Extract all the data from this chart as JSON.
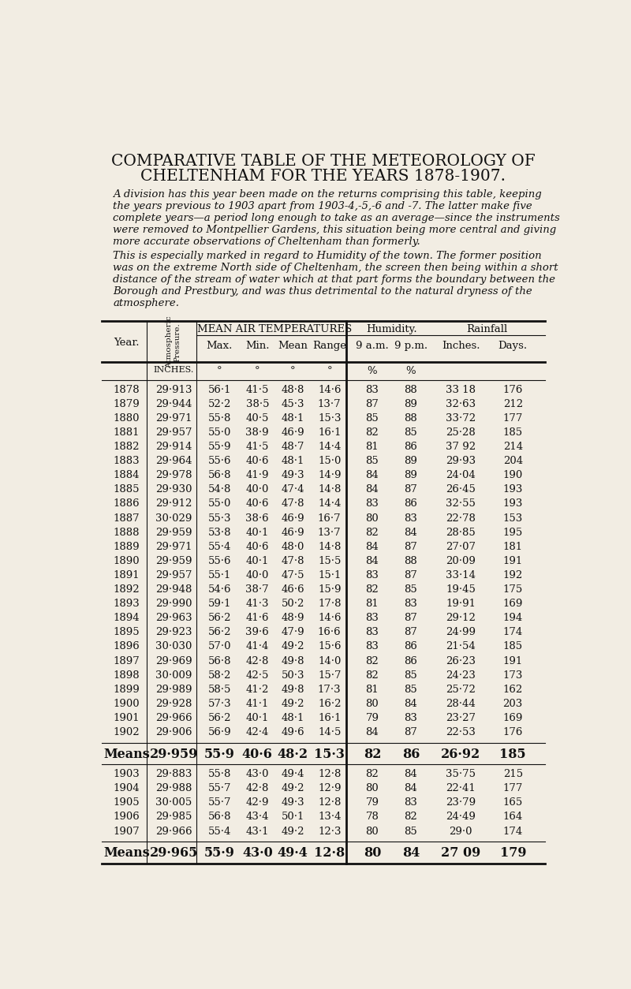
{
  "title_line1": "COMPARATIVE TABLE OF THE METEOROLOGY OF",
  "title_line2": "CHELTENHAM FOR THE YEARS 1878-1907.",
  "para1": "A division has this year been made on the returns comprising this table, keeping the years previous to 1903 apart from 1903-4,-5,-6 and -7. The latter make five complete years—a period long enough to take as an average—since the instruments were removed to Montpellier Gardens, this situation being more central and giving more accurate observations of Cheltenham than formerly.",
  "para2": "    This is especially marked in regard to Humidity of the town.  The former position was on the extreme North side of Cheltenham, the screen then being within a short distance of the stream of water which at that part forms the boundary between the Borough and Prestbury, and was thus detrimental to the natural dryness of the atmosphere.",
  "data_1878_1902": [
    [
      "1878",
      "29·913",
      "56·1",
      "41·5",
      "48·8",
      "14·6",
      "83",
      "88",
      "33 18",
      "176"
    ],
    [
      "1879",
      "29·944",
      "52·2",
      "38·5",
      "45·3",
      "13·7",
      "87",
      "89",
      "32·63",
      "212"
    ],
    [
      "1880",
      "29·971",
      "55·8",
      "40·5",
      "48·1",
      "15·3",
      "85",
      "88",
      "33·72",
      "177"
    ],
    [
      "1881",
      "29·957",
      "55·0",
      "38·9",
      "46·9",
      "16·1",
      "82",
      "85",
      "25·28",
      "185"
    ],
    [
      "1882",
      "29·914",
      "55·9",
      "41·5",
      "48·7",
      "14·4",
      "81",
      "86",
      "37 92",
      "214"
    ],
    [
      "1883",
      "29·964",
      "55·6",
      "40·6",
      "48·1",
      "15·0",
      "85",
      "89",
      "29·93",
      "204"
    ],
    [
      "1884",
      "29·978",
      "56·8",
      "41·9",
      "49·3",
      "14·9",
      "84",
      "89",
      "24·04",
      "190"
    ],
    [
      "1885",
      "29·930",
      "54·8",
      "40·0",
      "47·4",
      "14·8",
      "84",
      "87",
      "26·45",
      "193"
    ],
    [
      "1886",
      "29·912",
      "55·0",
      "40·6",
      "47·8",
      "14·4",
      "83",
      "86",
      "32·55",
      "193"
    ],
    [
      "1887",
      "30·029",
      "55·3",
      "38·6",
      "46·9",
      "16·7",
      "80",
      "83",
      "22·78",
      "153"
    ],
    [
      "1888",
      "29·959",
      "53·8",
      "40·1",
      "46·9",
      "13·7",
      "82",
      "84",
      "28·85",
      "195"
    ],
    [
      "1889",
      "29·971",
      "55·4",
      "40·6",
      "48·0",
      "14·8",
      "84",
      "87",
      "27·07",
      "181"
    ],
    [
      "1890",
      "29·959",
      "55·6",
      "40·1",
      "47·8",
      "15·5",
      "84",
      "88",
      "20·09",
      "191"
    ],
    [
      "1891",
      "29·957",
      "55·1",
      "40·0",
      "47·5",
      "15·1",
      "83",
      "87",
      "33·14",
      "192"
    ],
    [
      "1892",
      "29·948",
      "54·6",
      "38·7",
      "46·6",
      "15·9",
      "82",
      "85",
      "19·45",
      "175"
    ],
    [
      "1893",
      "29·990",
      "59·1",
      "41·3",
      "50·2",
      "17·8",
      "81",
      "83",
      "19·91",
      "169"
    ],
    [
      "1894",
      "29·963",
      "56·2",
      "41·6",
      "48·9",
      "14·6",
      "83",
      "87",
      "29·12",
      "194"
    ],
    [
      "1895",
      "29·923",
      "56·2",
      "39·6",
      "47·9",
      "16·6",
      "83",
      "87",
      "24·99",
      "174"
    ],
    [
      "1896",
      "30·030",
      "57·0",
      "41·4",
      "49·2",
      "15·6",
      "83",
      "86",
      "21·54",
      "185"
    ],
    [
      "1897",
      "29·969",
      "56·8",
      "42·8",
      "49·8",
      "14·0",
      "82",
      "86",
      "26·23",
      "191"
    ],
    [
      "1898",
      "30·009",
      "58·2",
      "42·5",
      "50·3",
      "15·7",
      "82",
      "85",
      "24·23",
      "173"
    ],
    [
      "1899",
      "29·989",
      "58·5",
      "41·2",
      "49·8",
      "17·3",
      "81",
      "85",
      "25·72",
      "162"
    ],
    [
      "1900",
      "29·928",
      "57·3",
      "41·1",
      "49·2",
      "16·2",
      "80",
      "84",
      "28·44",
      "203"
    ],
    [
      "1901",
      "29·966",
      "56·2",
      "40·1",
      "48·1",
      "16·1",
      "79",
      "83",
      "23·27",
      "169"
    ],
    [
      "1902",
      "29·906",
      "56·9",
      "42·4",
      "49·6",
      "14·5",
      "84",
      "87",
      "22·53",
      "176"
    ]
  ],
  "means_1": [
    "Means",
    "29·959",
    "55·9",
    "40·6",
    "48·2",
    "15·3",
    "82",
    "86",
    "26·92",
    "185"
  ],
  "data_1903_1907": [
    [
      "1903",
      "29·883",
      "55·8",
      "43·0",
      "49·4",
      "12·8",
      "82",
      "84",
      "35·75",
      "215"
    ],
    [
      "1904",
      "29·988",
      "55·7",
      "42·8",
      "49·2",
      "12·9",
      "80",
      "84",
      "22·41",
      "177"
    ],
    [
      "1905",
      "30·005",
      "55·7",
      "42·9",
      "49·3",
      "12·8",
      "79",
      "83",
      "23·79",
      "165"
    ],
    [
      "1906",
      "29·985",
      "56·8",
      "43·4",
      "50·1",
      "13·4",
      "78",
      "82",
      "24·49",
      "164"
    ],
    [
      "1907",
      "29·966",
      "55·4",
      "43·1",
      "49·2",
      "12·3",
      "80",
      "85",
      "29·0",
      "174"
    ]
  ],
  "means_2": [
    "Means",
    "29·965",
    "55·9",
    "43·0",
    "49·4",
    "12·8",
    "80",
    "84",
    "27 09",
    "179"
  ],
  "bg_color": "#f2ede3",
  "text_color": "#111111",
  "line_color": "#111111"
}
